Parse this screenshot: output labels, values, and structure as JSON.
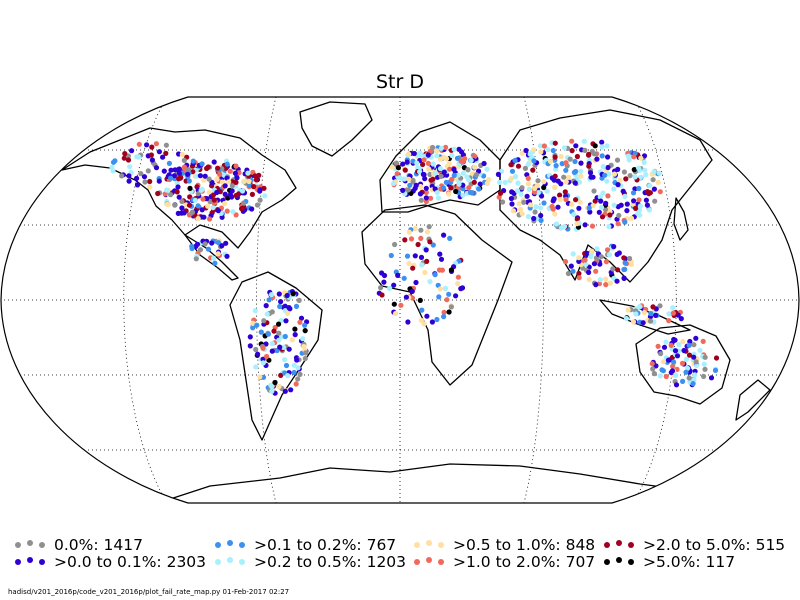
{
  "title": "Str D",
  "legend": [
    {
      "label": "0.0%: 1417",
      "color": "#909090"
    },
    {
      "label": ">0.0 to 0.1%: 2303",
      "color": "#2e00d4"
    },
    {
      "label": ">0.1 to 0.2%: 767",
      "color": "#3c90f0"
    },
    {
      "label": ">0.2 to 0.5%: 1203",
      "color": "#a8f0ff"
    },
    {
      "label": ">0.5 to 1.0%: 848",
      "color": "#ffe0a0"
    },
    {
      "label": ">1.0 to 2.0%: 707",
      "color": "#f06a5c"
    },
    {
      "label": ">2.0 to 5.0%: 515",
      "color": "#a0001e"
    },
    {
      "label": ">5.0%: 117",
      "color": "#000000"
    }
  ],
  "footnote": "hadisd/v201_2016p/code_v201_2016p/plot_fail_rate_map.py   01-Feb-2017 02:27"
}
